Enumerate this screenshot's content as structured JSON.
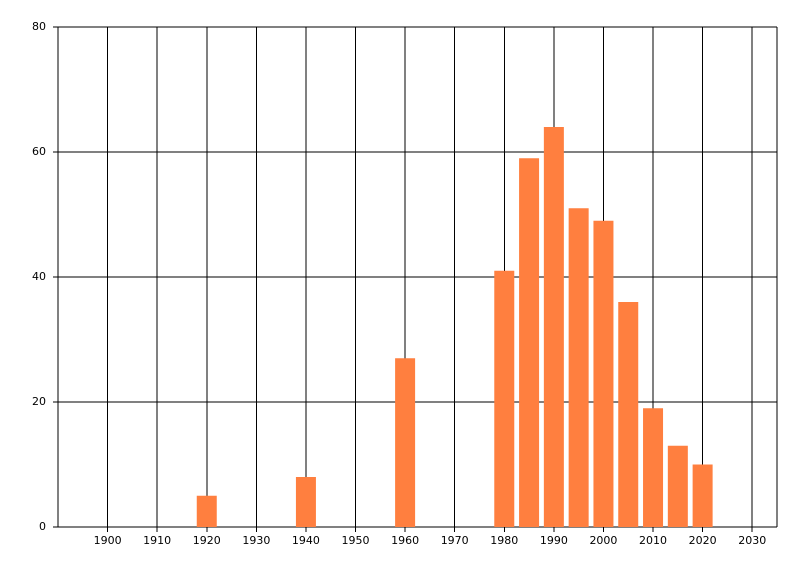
{
  "chart_data": {
    "type": "bar",
    "x": [
      1920,
      1940,
      1960,
      1980,
      1985,
      1990,
      1995,
      2000,
      2005,
      2010,
      2015,
      2020
    ],
    "values": [
      5,
      8,
      27,
      41,
      59,
      64,
      51,
      49,
      36,
      19,
      13,
      10
    ],
    "color": "#ff7f3f",
    "xlim": [
      1890,
      2035
    ],
    "xticks": [
      1900,
      1910,
      1920,
      1930,
      1940,
      1950,
      1960,
      1970,
      1980,
      1990,
      2000,
      2010,
      2020,
      2030
    ],
    "ylim": [
      0,
      80
    ],
    "yticks": [
      0,
      20,
      40,
      60,
      80
    ],
    "grid": true
  }
}
